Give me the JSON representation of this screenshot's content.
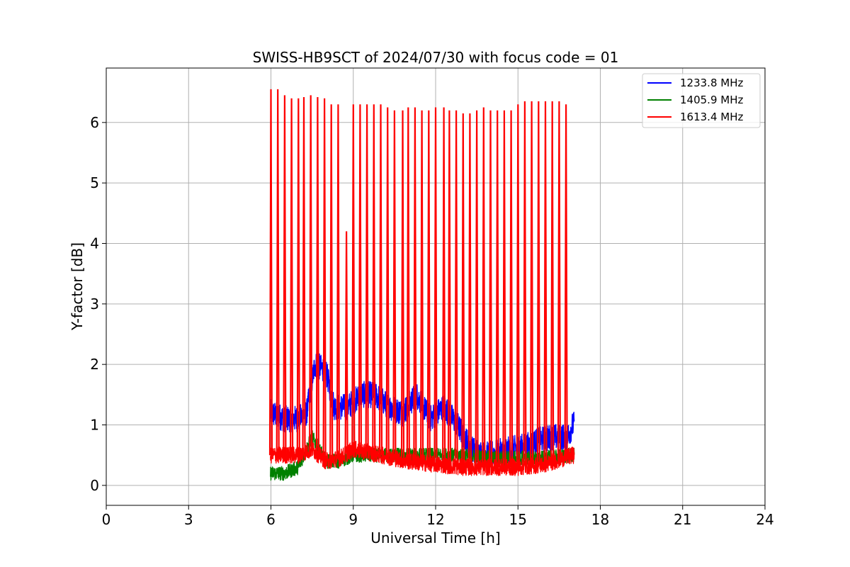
{
  "chart_data": {
    "type": "line",
    "title": "SWISS-HB9SCT of 2024/07/30 with focus code = 01",
    "xlabel": "Universal Time [h]",
    "ylabel": "Y-factor [dB]",
    "xlim": [
      0,
      24
    ],
    "ylim": [
      -0.33,
      6.9
    ],
    "xticks": [
      0,
      3,
      6,
      9,
      12,
      15,
      18,
      21,
      24
    ],
    "yticks": [
      0,
      1,
      2,
      3,
      4,
      5,
      6
    ],
    "grid": true,
    "legend_position": "top-right",
    "data_start_h": 5.98,
    "data_end_h": 17.05,
    "series": [
      {
        "name": "1233.8 MHz",
        "color": "#0000ff",
        "baseline_h": [
          6.0,
          6.5,
          7.0,
          7.3,
          7.6,
          8.0,
          8.3,
          8.8,
          9.3,
          9.8,
          10.3,
          10.8,
          11.3,
          11.8,
          12.3,
          12.8,
          13.3,
          13.8,
          14.3,
          14.8,
          15.3,
          15.8,
          16.3,
          16.8,
          17.0
        ],
        "baseline_db": [
          1.2,
          1.1,
          1.1,
          1.2,
          2.0,
          1.9,
          1.3,
          1.3,
          1.5,
          1.5,
          1.3,
          1.2,
          1.5,
          1.1,
          1.3,
          1.0,
          0.6,
          0.5,
          0.55,
          0.6,
          0.65,
          0.75,
          0.8,
          0.8,
          1.0
        ]
      },
      {
        "name": "1405.9 MHz",
        "color": "#008000",
        "baseline_h": [
          6.0,
          6.5,
          7.0,
          7.5,
          8.0,
          8.5,
          9.0,
          10.0,
          11.0,
          12.0,
          13.0,
          14.0,
          15.0,
          16.0,
          17.0
        ],
        "baseline_db": [
          0.2,
          0.2,
          0.3,
          0.8,
          0.4,
          0.4,
          0.5,
          0.5,
          0.5,
          0.5,
          0.5,
          0.45,
          0.45,
          0.45,
          0.5
        ]
      },
      {
        "name": "1613.4 MHz",
        "color": "#ff0000",
        "baseline_h": [
          6.0,
          6.5,
          7.0,
          7.5,
          8.0,
          8.5,
          9.0,
          10.0,
          11.0,
          12.0,
          13.0,
          14.0,
          15.0,
          16.0,
          17.0
        ],
        "baseline_db": [
          0.5,
          0.5,
          0.5,
          0.6,
          0.4,
          0.45,
          0.6,
          0.5,
          0.4,
          0.35,
          0.3,
          0.3,
          0.3,
          0.35,
          0.5
        ],
        "spike_h": [
          6.0,
          6.25,
          6.5,
          6.75,
          7.0,
          7.2,
          7.45,
          7.7,
          7.95,
          8.2,
          8.45,
          8.75,
          9.0,
          9.25,
          9.5,
          9.75,
          10.0,
          10.25,
          10.5,
          10.8,
          11.0,
          11.25,
          11.5,
          11.75,
          12.0,
          12.3,
          12.5,
          12.75,
          13.0,
          13.25,
          13.5,
          13.75,
          14.0,
          14.25,
          14.5,
          14.75,
          15.0,
          15.25,
          15.5,
          15.75,
          16.0,
          16.25,
          16.5,
          16.75
        ],
        "spike_db": [
          6.55,
          6.55,
          6.45,
          6.4,
          6.4,
          6.42,
          6.45,
          6.42,
          6.4,
          6.3,
          6.3,
          4.2,
          6.3,
          6.3,
          6.3,
          6.3,
          6.3,
          6.25,
          6.2,
          6.2,
          6.25,
          6.25,
          6.2,
          6.2,
          6.25,
          6.25,
          6.2,
          6.2,
          6.15,
          6.15,
          6.2,
          6.25,
          6.2,
          6.2,
          6.2,
          6.2,
          6.3,
          6.35,
          6.35,
          6.35,
          6.35,
          6.35,
          6.35,
          6.3
        ]
      }
    ]
  }
}
